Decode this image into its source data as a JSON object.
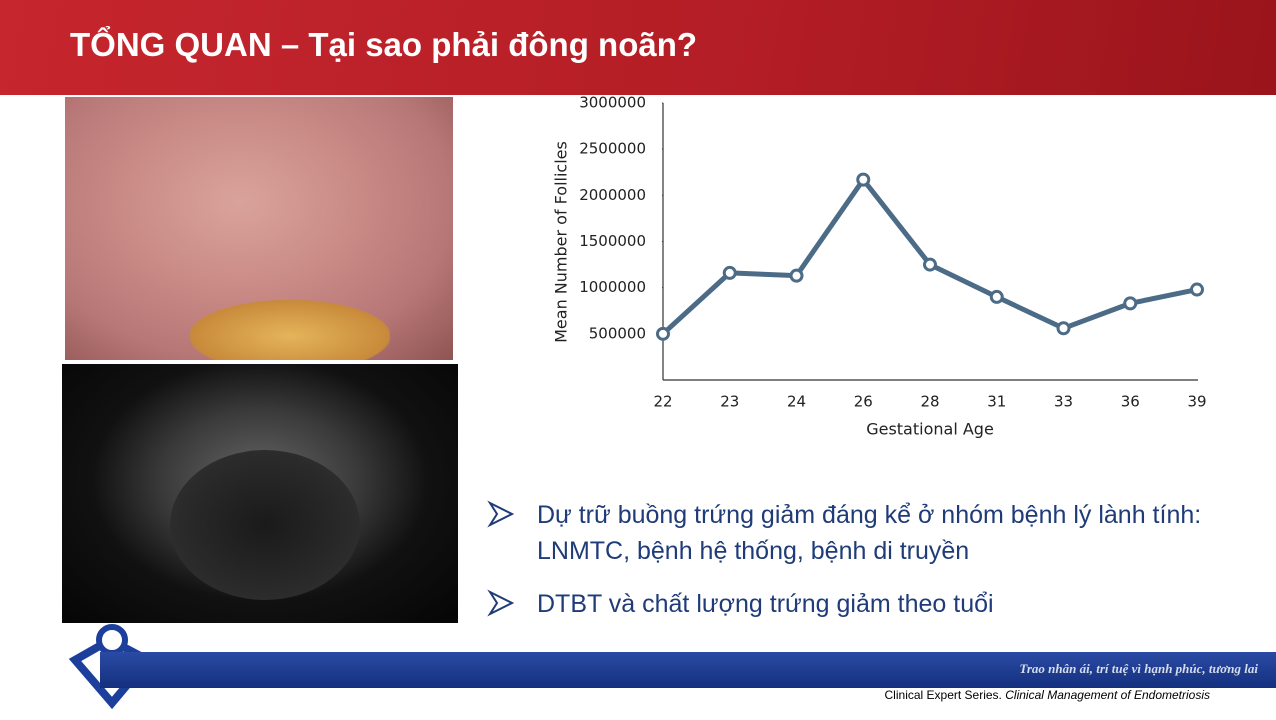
{
  "header": {
    "title": "TỔNG QUAN – Tại sao phải đông noãn?"
  },
  "chart_data": {
    "type": "line",
    "x_label": "Gestational Age",
    "y_label": "Mean Number of Follicles",
    "categories": [
      "22",
      "23",
      "24",
      "26",
      "28",
      "31",
      "33",
      "36",
      "39"
    ],
    "values": [
      500000,
      1160000,
      1130000,
      2170000,
      1250000,
      900000,
      560000,
      830000,
      980000
    ],
    "color": "#4b6b86",
    "ylim": [
      0,
      3000000
    ],
    "yticks": [
      500000,
      1000000,
      1500000,
      2000000,
      2500000,
      3000000
    ],
    "grid": false
  },
  "bullets": [
    "Dự trữ buồng trứng giảm đáng kể ở nhóm bệnh lý lành tính: LNMTC, bệnh hệ thống, bệnh di truyền",
    "DTBT và chất lượng trứng giảm theo tuổi"
  ],
  "footer": {
    "slogan": "Trao nhân ái, trí tuệ vì hạnh phúc, tương lai",
    "citation": "Clinical Expert Series. ",
    "citation_italic": "Clinical Management of Endometriosis"
  }
}
